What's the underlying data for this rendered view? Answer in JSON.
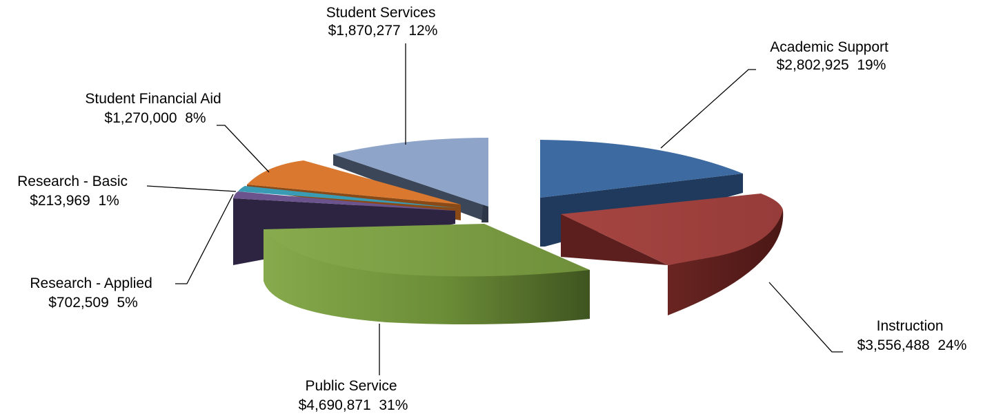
{
  "chart_data": {
    "type": "pie",
    "title": "",
    "style": "3d-exploded",
    "slices": [
      {
        "label": "Academic Support",
        "value": 2802925,
        "value_text": "$2,802,925",
        "percent_text": "19%",
        "color": "#3d6aa0"
      },
      {
        "label": "Instruction",
        "value": 3556488,
        "value_text": "$3,556,488",
        "percent_text": "24%",
        "color": "#9b403d"
      },
      {
        "label": "Public Service",
        "value": 4690871,
        "value_text": "$4,690,871",
        "percent_text": "31%",
        "color": "#7f9f45"
      },
      {
        "label": "Research - Applied",
        "value": 702509,
        "value_text": "$702,509",
        "percent_text": "5%",
        "color": "#6b538d"
      },
      {
        "label": "Research - Basic",
        "value": 213969,
        "value_text": "$213,969",
        "percent_text": "1%",
        "color": "#3a9bb4"
      },
      {
        "label": "Student Financial Aid",
        "value": 1270000,
        "value_text": "$1,270,000",
        "percent_text": "8%",
        "color": "#d9782e"
      },
      {
        "label": "Student Services",
        "value": 1870277,
        "value_text": "$1,870,277",
        "percent_text": "12%",
        "color": "#8ea4c8"
      }
    ]
  }
}
